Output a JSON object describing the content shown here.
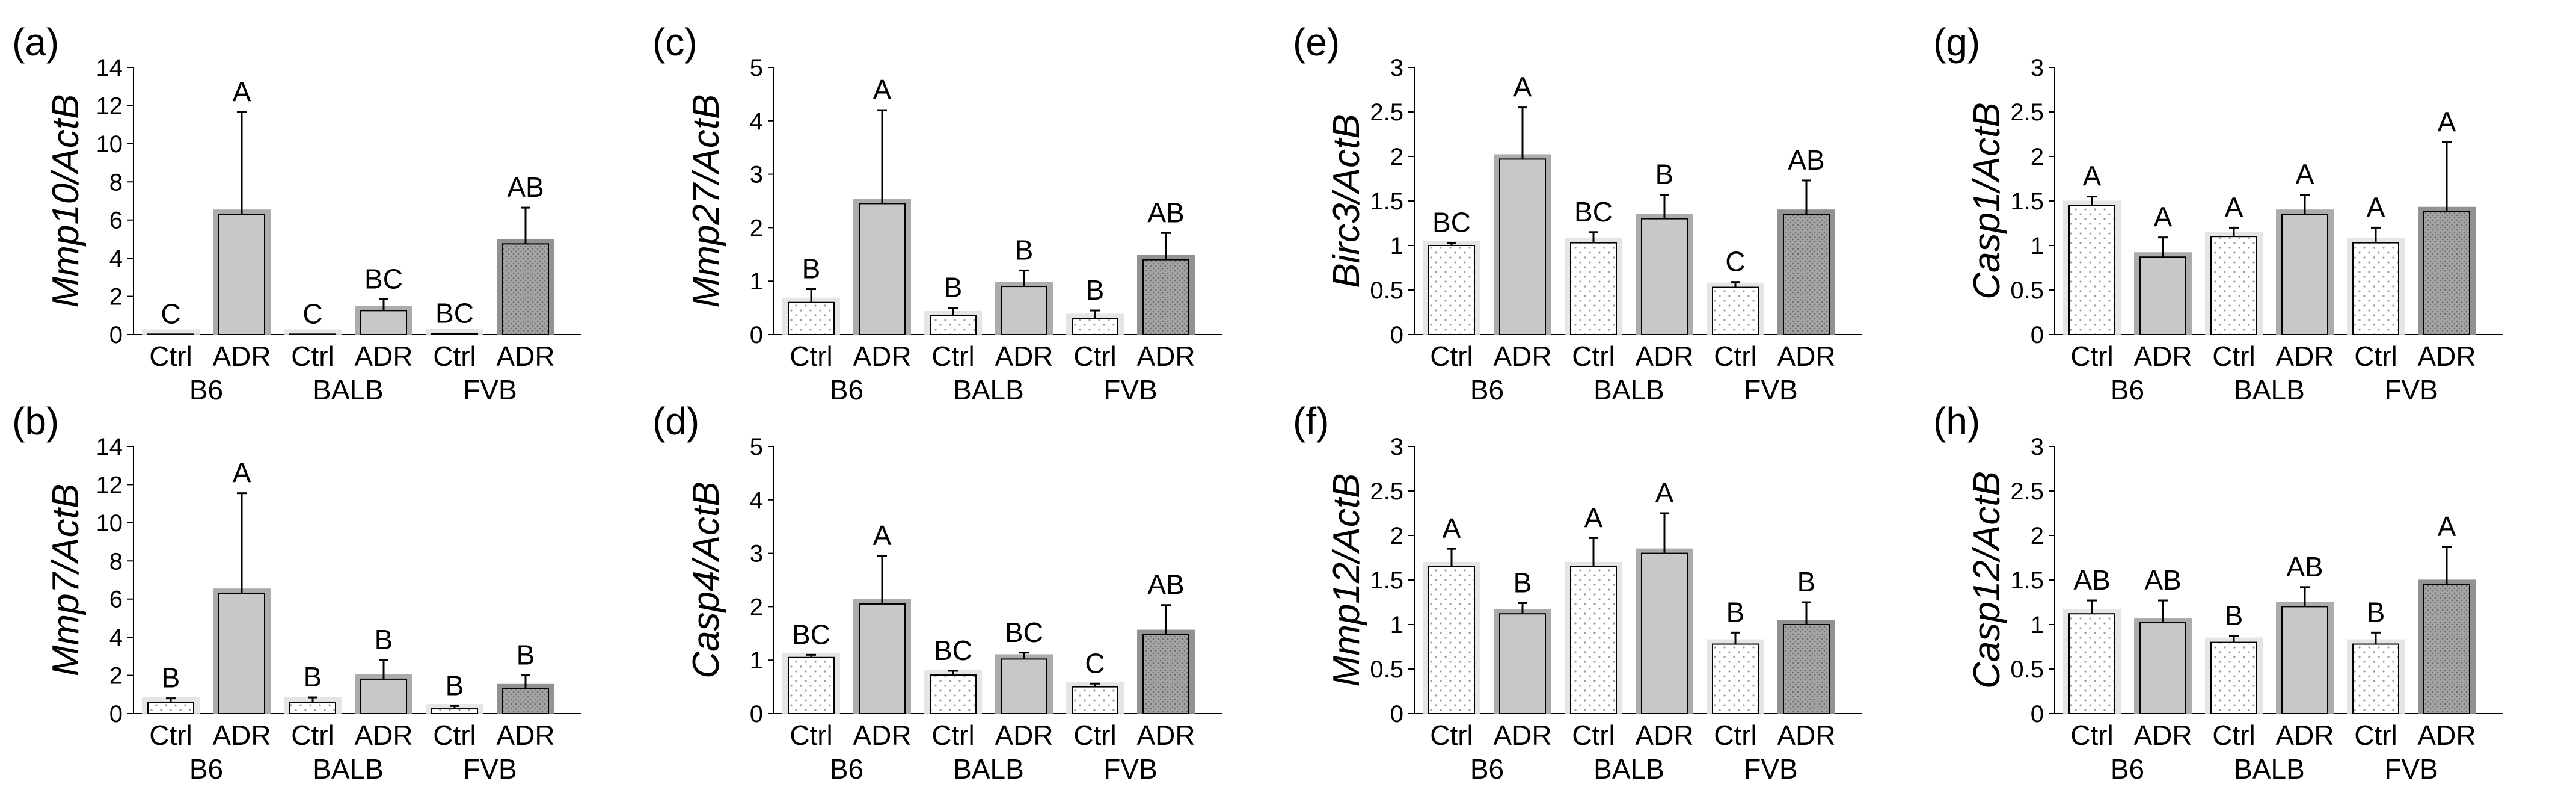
{
  "figure": {
    "colors": {
      "fill_light": "#c8c8c8",
      "fill_dark": "#a8a8a8",
      "stroke": "#000000",
      "dots": "#9a9a9a"
    }
  },
  "chart_data": [
    {
      "type": "bar",
      "id": "a",
      "panel_label": "(a)",
      "ylabel": "Mmp10/ActB",
      "ylim": [
        0,
        14
      ],
      "yticks": [
        "0",
        "2",
        "4",
        "6",
        "8",
        "10",
        "12",
        "14"
      ],
      "categories": [
        "Ctrl",
        "ADR",
        "Ctrl",
        "ADR",
        "Ctrl",
        "ADR"
      ],
      "groups": [
        "B6",
        "BALB",
        "FVB"
      ],
      "values": [
        0.02,
        6.3,
        0.02,
        1.25,
        0.04,
        4.75
      ],
      "errors": [
        0,
        5.35,
        0,
        0.6,
        0,
        1.9
      ],
      "letters": [
        "C",
        "A",
        "C",
        "BC",
        "BC",
        "AB"
      ]
    },
    {
      "type": "bar",
      "id": "b",
      "panel_label": "(b)",
      "ylabel": "Mmp7/ActB",
      "ylim": [
        0,
        14
      ],
      "yticks": [
        "0",
        "2",
        "4",
        "6",
        "8",
        "10",
        "12",
        "14"
      ],
      "categories": [
        "Ctrl",
        "ADR",
        "Ctrl",
        "ADR",
        "Ctrl",
        "ADR"
      ],
      "groups": [
        "B6",
        "BALB",
        "FVB"
      ],
      "values": [
        0.6,
        6.3,
        0.6,
        1.8,
        0.25,
        1.3
      ],
      "errors": [
        0.2,
        5.25,
        0.25,
        1.0,
        0.15,
        0.7
      ],
      "letters": [
        "B",
        "A",
        "B",
        "B",
        "B",
        "B"
      ]
    },
    {
      "type": "bar",
      "id": "c",
      "panel_label": "(c)",
      "ylabel": "Mmp27/ActB",
      "ylim": [
        0,
        5
      ],
      "yticks": [
        "0",
        "1",
        "2",
        "3",
        "4",
        "5"
      ],
      "categories": [
        "Ctrl",
        "ADR",
        "Ctrl",
        "ADR",
        "Ctrl",
        "ADR"
      ],
      "groups": [
        "B6",
        "BALB",
        "FVB"
      ],
      "values": [
        0.6,
        2.45,
        0.35,
        0.9,
        0.3,
        1.4
      ],
      "errors": [
        0.25,
        1.75,
        0.15,
        0.3,
        0.15,
        0.5
      ],
      "letters": [
        "B",
        "A",
        "B",
        "B",
        "B",
        "AB"
      ]
    },
    {
      "type": "bar",
      "id": "d",
      "panel_label": "(d)",
      "ylabel": "Casp4/ActB",
      "ylim": [
        0,
        5
      ],
      "yticks": [
        "0",
        "1",
        "2",
        "3",
        "4",
        "5"
      ],
      "categories": [
        "Ctrl",
        "ADR",
        "Ctrl",
        "ADR",
        "Ctrl",
        "ADR"
      ],
      "groups": [
        "B6",
        "BALB",
        "FVB"
      ],
      "values": [
        1.05,
        2.05,
        0.72,
        1.02,
        0.5,
        1.48
      ],
      "errors": [
        0.05,
        0.9,
        0.08,
        0.12,
        0.06,
        0.55
      ],
      "letters": [
        "BC",
        "A",
        "BC",
        "BC",
        "C",
        "AB"
      ]
    },
    {
      "type": "bar",
      "id": "e",
      "panel_label": "(e)",
      "ylabel": "Birc3/ActB",
      "ylim": [
        0,
        3
      ],
      "yticks": [
        "0",
        "0.5",
        "1",
        "1.5",
        "2",
        "2.5",
        "3"
      ],
      "categories": [
        "Ctrl",
        "ADR",
        "Ctrl",
        "ADR",
        "Ctrl",
        "ADR"
      ],
      "groups": [
        "B6",
        "BALB",
        "FVB"
      ],
      "values": [
        1.0,
        1.97,
        1.03,
        1.3,
        0.53,
        1.35
      ],
      "errors": [
        0.03,
        0.58,
        0.12,
        0.27,
        0.06,
        0.38
      ],
      "letters": [
        "BC",
        "A",
        "BC",
        "B",
        "C",
        "AB"
      ]
    },
    {
      "type": "bar",
      "id": "f",
      "panel_label": "(f)",
      "ylabel": "Mmp12/ActB",
      "ylim": [
        0,
        3
      ],
      "yticks": [
        "0",
        "0.5",
        "1",
        "1.5",
        "2",
        "2.5",
        "3"
      ],
      "categories": [
        "Ctrl",
        "ADR",
        "Ctrl",
        "ADR",
        "Ctrl",
        "ADR"
      ],
      "groups": [
        "B6",
        "BALB",
        "FVB"
      ],
      "values": [
        1.65,
        1.12,
        1.65,
        1.8,
        0.78,
        1.0
      ],
      "errors": [
        0.2,
        0.12,
        0.32,
        0.45,
        0.13,
        0.25
      ],
      "letters": [
        "A",
        "B",
        "A",
        "A",
        "B",
        "B"
      ]
    },
    {
      "type": "bar",
      "id": "g",
      "panel_label": "(g)",
      "ylabel": "Casp1/ActB",
      "ylim": [
        0,
        3
      ],
      "yticks": [
        "0",
        "0.5",
        "1",
        "1.5",
        "2",
        "2.5",
        "3"
      ],
      "categories": [
        "Ctrl",
        "ADR",
        "Ctrl",
        "ADR",
        "Ctrl",
        "ADR"
      ],
      "groups": [
        "B6",
        "BALB",
        "FVB"
      ],
      "values": [
        1.45,
        0.87,
        1.1,
        1.35,
        1.03,
        1.38
      ],
      "errors": [
        0.1,
        0.22,
        0.1,
        0.22,
        0.17,
        0.78
      ],
      "letters": [
        "A",
        "A",
        "A",
        "A",
        "A",
        "A"
      ]
    },
    {
      "type": "bar",
      "id": "h",
      "panel_label": "(h)",
      "ylabel": "Casp12/ActB",
      "ylim": [
        0,
        3
      ],
      "yticks": [
        "0",
        "0.5",
        "1",
        "1.5",
        "2",
        "2.5",
        "3"
      ],
      "categories": [
        "Ctrl",
        "ADR",
        "Ctrl",
        "ADR",
        "Ctrl",
        "ADR"
      ],
      "groups": [
        "B6",
        "BALB",
        "FVB"
      ],
      "values": [
        1.12,
        1.02,
        0.8,
        1.2,
        0.78,
        1.45
      ],
      "errors": [
        0.15,
        0.25,
        0.07,
        0.22,
        0.13,
        0.42
      ],
      "letters": [
        "AB",
        "AB",
        "B",
        "AB",
        "B",
        "A"
      ]
    }
  ]
}
